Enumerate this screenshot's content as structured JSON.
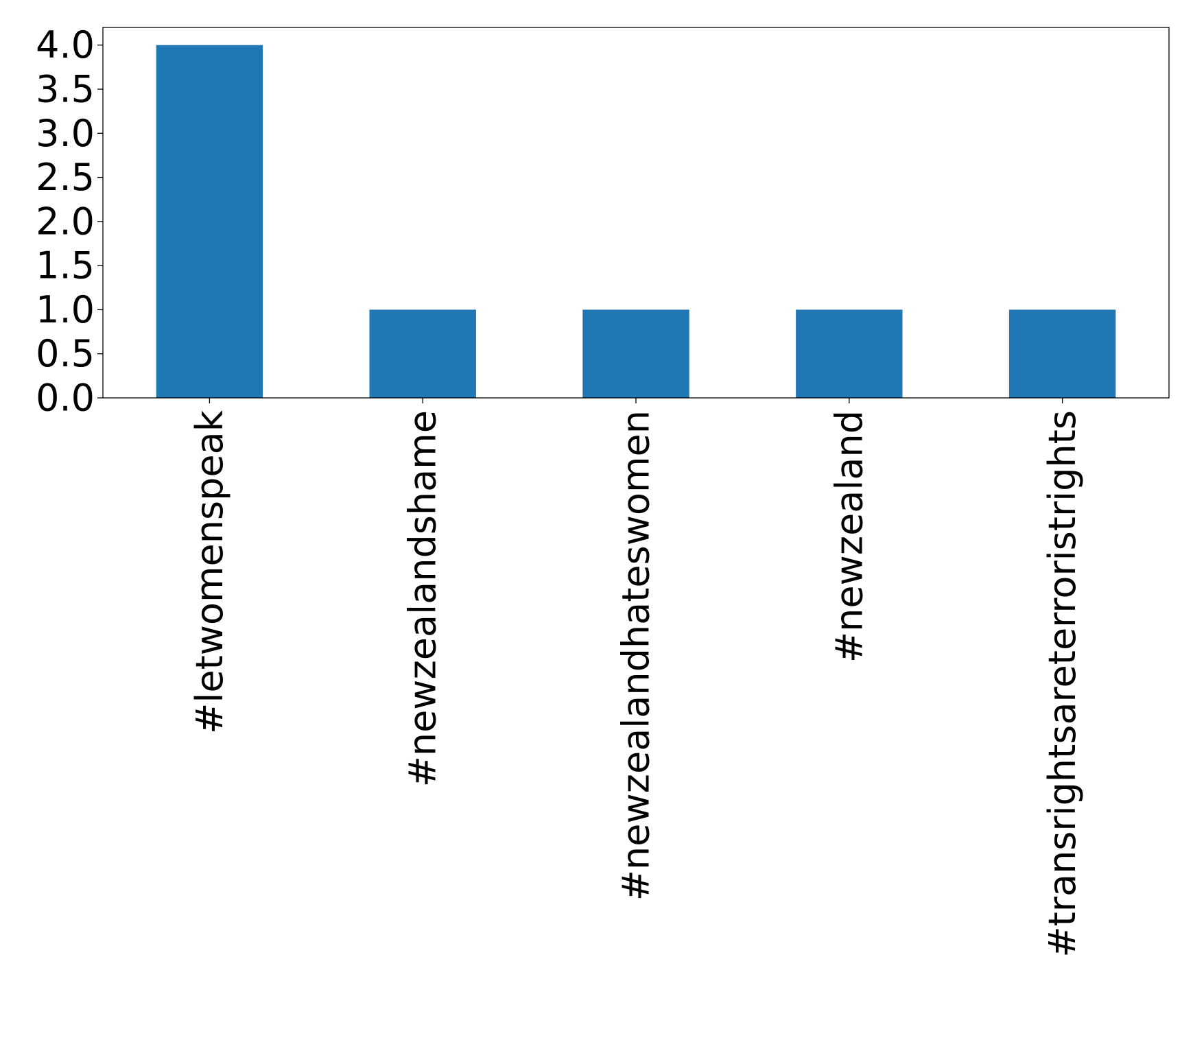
{
  "chart_data": {
    "type": "bar",
    "title": "",
    "xlabel": "",
    "ylabel": "",
    "categories": [
      "#letwomenspeak",
      "#newzealandshame",
      "#newzealandhateswomen",
      "#newzealand",
      "#transrightsareterroristrights"
    ],
    "values": [
      4,
      1,
      1,
      1,
      1
    ],
    "ylim": [
      0,
      4.2
    ],
    "yticks": [
      "0.0",
      "0.5",
      "1.0",
      "1.5",
      "2.0",
      "2.5",
      "3.0",
      "3.5",
      "4.0"
    ],
    "bar_color": "#1f77b4",
    "grid": false,
    "legend": "none"
  }
}
